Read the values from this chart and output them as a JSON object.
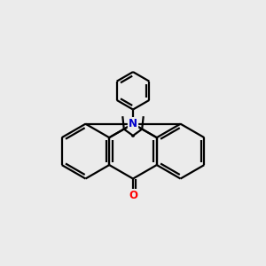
{
  "background_color": "#ebebeb",
  "bond_color": "#000000",
  "N_color": "#0000cc",
  "O_color": "#ff0000",
  "line_width": 1.6,
  "figsize": [
    3.0,
    3.0
  ],
  "dpi": 100
}
